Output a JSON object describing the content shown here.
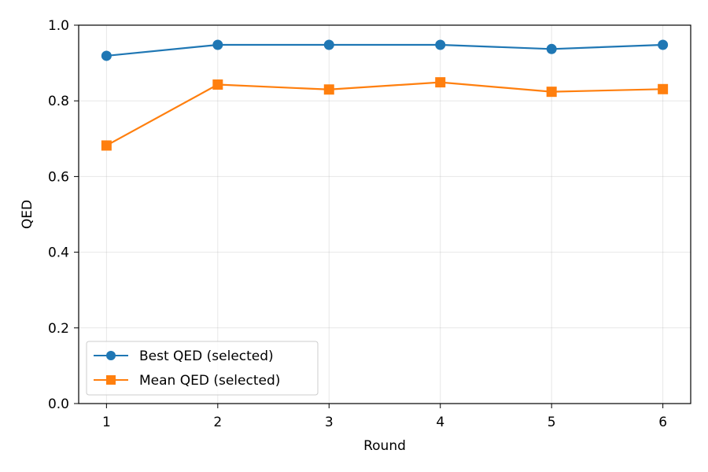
{
  "chart_data": {
    "type": "line",
    "title": "",
    "xlabel": "Round",
    "ylabel": "QED",
    "x": [
      1,
      2,
      3,
      4,
      5,
      6
    ],
    "xticks": [
      "1",
      "2",
      "3",
      "4",
      "5",
      "6"
    ],
    "xlim": [
      0.75,
      6.25
    ],
    "ylim": [
      0.0,
      1.0
    ],
    "yticks": [
      "0.0",
      "0.2",
      "0.4",
      "0.6",
      "0.8",
      "1.0"
    ],
    "grid": true,
    "legend_position": "lower-left",
    "series": [
      {
        "name": "Best QED (selected)",
        "values": [
          0.919,
          0.948,
          0.948,
          0.948,
          0.937,
          0.948
        ],
        "color": "#1f77b4",
        "marker": "circle"
      },
      {
        "name": "Mean QED (selected)",
        "values": [
          0.682,
          0.843,
          0.83,
          0.849,
          0.824,
          0.831
        ],
        "color": "#ff7f0e",
        "marker": "square"
      }
    ]
  }
}
